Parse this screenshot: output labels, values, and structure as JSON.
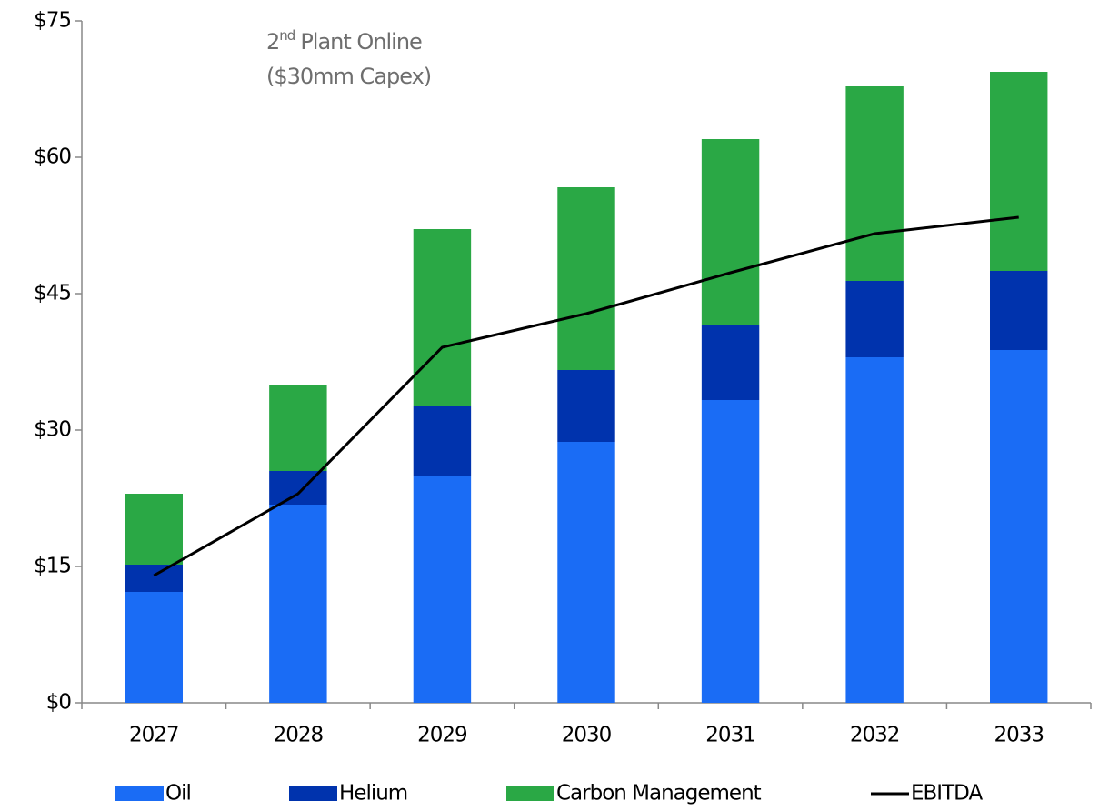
{
  "chart_data": {
    "type": "stacked_bar_line",
    "annotation": {
      "ordinal": "2",
      "suffix": "nd",
      "rest": "Plant Online",
      "line2": "($30mm Capex)"
    },
    "categories": [
      "2027",
      "2028",
      "2029",
      "2030",
      "2031",
      "2032",
      "2033"
    ],
    "series": [
      {
        "name": "Oil",
        "color": "#1a6cf5",
        "kind": "bar",
        "values": [
          12.2,
          21.8,
          25.0,
          28.7,
          33.3,
          38.0,
          38.8
        ]
      },
      {
        "name": "Helium",
        "color": "#0033ad",
        "kind": "bar",
        "values": [
          3.0,
          3.7,
          7.7,
          7.9,
          8.2,
          8.4,
          8.7
        ]
      },
      {
        "name": "Carbon Management",
        "color": "#2aa845",
        "kind": "bar",
        "values": [
          7.8,
          9.5,
          19.4,
          20.1,
          20.5,
          21.4,
          21.9
        ]
      },
      {
        "name": "EBITDA",
        "color": "#000000",
        "kind": "line",
        "values": [
          14.0,
          23.0,
          39.1,
          42.8,
          47.3,
          51.6,
          53.4
        ]
      }
    ],
    "ylim": [
      0,
      75
    ],
    "yticks": [
      {
        "value": 0,
        "label": "$0"
      },
      {
        "value": 15,
        "label": "$15"
      },
      {
        "value": 30,
        "label": "$30"
      },
      {
        "value": 45,
        "label": "$45"
      },
      {
        "value": 60,
        "label": "$60"
      },
      {
        "value": 75,
        "label": "$75"
      }
    ],
    "grid": false,
    "legend": "bottom"
  }
}
